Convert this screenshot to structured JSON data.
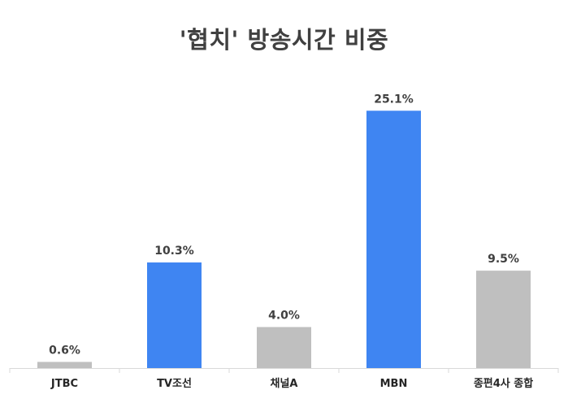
{
  "chart_data": {
    "type": "bar",
    "title": "'협치' 방송시간 비중",
    "categories": [
      "JTBC",
      "TV조선",
      "채널A",
      "MBN",
      "종편4사 종합"
    ],
    "values": [
      0.6,
      10.3,
      4.0,
      25.1,
      9.5
    ],
    "value_labels": [
      "0.6%",
      "10.3%",
      "4.0%",
      "25.1%",
      "9.5%"
    ],
    "unit": "%",
    "ylim": [
      0,
      27.5
    ],
    "grid": false,
    "legend": "none",
    "bar_colors": [
      "#bfbfbf",
      "#3f85f2",
      "#bfbfbf",
      "#3f85f2",
      "#bfbfbf"
    ],
    "axis_color": "#d9d9d9"
  }
}
